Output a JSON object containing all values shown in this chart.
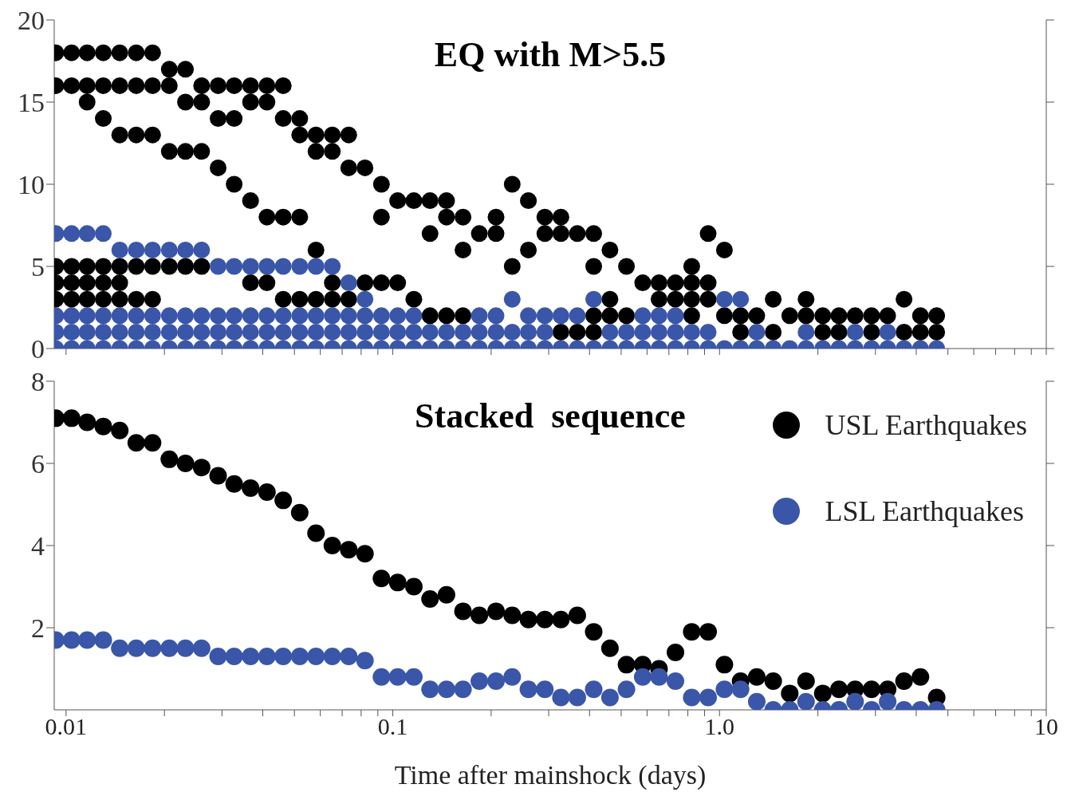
{
  "chart_data": [
    {
      "type": "scatter",
      "title": "EQ with M>5.5",
      "log": "x",
      "marker": "circle",
      "tick_labels": "y",
      "xlim": [
        0.0092,
        10
      ],
      "xticks": [
        {
          "value": 0.01,
          "label": null
        },
        {
          "value": 0.02,
          "label": null
        },
        {
          "value": 0.03,
          "label": null
        },
        {
          "value": 0.04,
          "label": null
        },
        {
          "value": 0.05,
          "label": null
        },
        {
          "value": 0.06,
          "label": null
        },
        {
          "value": 0.07,
          "label": null
        },
        {
          "value": 0.08,
          "label": null
        },
        {
          "value": 0.09,
          "label": null
        },
        {
          "value": 0.1,
          "label": null
        },
        {
          "value": 0.2,
          "label": null
        },
        {
          "value": 0.3,
          "label": null
        },
        {
          "value": 0.4,
          "label": null
        },
        {
          "value": 0.5,
          "label": null
        },
        {
          "value": 0.6,
          "label": null
        },
        {
          "value": 0.7,
          "label": null
        },
        {
          "value": 0.8,
          "label": null
        },
        {
          "value": 0.9,
          "label": null
        },
        {
          "value": 1,
          "label": null
        },
        {
          "value": 2,
          "label": null
        },
        {
          "value": 3,
          "label": null
        },
        {
          "value": 4,
          "label": null
        },
        {
          "value": 5,
          "label": null
        },
        {
          "value": 6,
          "label": null
        },
        {
          "value": 7,
          "label": null
        },
        {
          "value": 8,
          "label": null
        },
        {
          "value": 9,
          "label": null
        },
        {
          "value": 10,
          "label": null
        }
      ],
      "ylim": [
        0,
        20
      ],
      "yticks": [
        0,
        5,
        10,
        15,
        20
      ],
      "series": [
        {
          "color": "#000000",
          "x": [
            0.0093,
            0.0093,
            0.0093,
            0.0093,
            0.0093,
            0.0104,
            0.0104,
            0.0104,
            0.0104,
            0.0104,
            0.0116,
            0.0116,
            0.0116,
            0.0116,
            0.0116,
            0.0116,
            0.013,
            0.013,
            0.013,
            0.013,
            0.013,
            0.013,
            0.0146,
            0.0146,
            0.0146,
            0.0146,
            0.0146,
            0.0146,
            0.0164,
            0.0164,
            0.0164,
            0.0164,
            0.0164,
            0.0184,
            0.0184,
            0.0184,
            0.0184,
            0.0184,
            0.0207,
            0.0207,
            0.0207,
            0.0207,
            0.0232,
            0.0232,
            0.0232,
            0.0232,
            0.026,
            0.026,
            0.026,
            0.026,
            0.0292,
            0.0292,
            0.0292,
            0.0327,
            0.0327,
            0.0327,
            0.0367,
            0.0367,
            0.0367,
            0.0367,
            0.0412,
            0.0412,
            0.0412,
            0.0412,
            0.0462,
            0.0462,
            0.0462,
            0.0462,
            0.0519,
            0.0519,
            0.0519,
            0.0519,
            0.0582,
            0.0582,
            0.0582,
            0.0582,
            0.0653,
            0.0653,
            0.0653,
            0.0653,
            0.0733,
            0.0733,
            0.0733,
            0.0822,
            0.0822,
            0.0923,
            0.0923,
            0.0923,
            0.1035,
            0.1035,
            0.116,
            0.116,
            0.13,
            0.13,
            0.13,
            0.146,
            0.146,
            0.146,
            0.164,
            0.164,
            0.164,
            0.184,
            0.207,
            0.207,
            0.232,
            0.232,
            0.26,
            0.26,
            0.292,
            0.292,
            0.327,
            0.327,
            0.327,
            0.367,
            0.367,
            0.412,
            0.412,
            0.412,
            0.412,
            0.462,
            0.462,
            0.462,
            0.519,
            0.519,
            0.582,
            0.653,
            0.653,
            0.733,
            0.733,
            0.822,
            0.822,
            0.822,
            0.822,
            0.923,
            0.923,
            0.923,
            1.035,
            1.035,
            1.16,
            1.16,
            1.3,
            1.46,
            1.46,
            1.64,
            1.84,
            1.84,
            2.07,
            2.07,
            2.32,
            2.32,
            2.6,
            2.92,
            2.92,
            3.27,
            3.67,
            3.67,
            4.12,
            4.12,
            4.62,
            4.62
          ],
          "values": [
            18,
            16,
            5,
            4,
            3,
            18,
            16,
            5,
            4,
            3,
            18,
            16,
            15,
            5,
            4,
            3,
            18,
            16,
            14,
            5,
            4,
            3,
            18,
            16,
            13,
            5,
            4,
            3,
            18,
            16,
            13,
            5,
            3,
            18,
            16,
            13,
            5,
            3,
            17,
            16,
            12,
            5,
            17,
            15,
            12,
            5,
            16,
            15,
            12,
            5,
            16,
            14,
            11,
            16,
            14,
            10,
            16,
            15,
            9,
            4,
            16,
            15,
            8,
            4,
            16,
            14,
            8,
            3,
            14,
            13,
            8,
            3,
            13,
            12,
            6,
            3,
            13,
            12,
            4,
            3,
            13,
            11,
            3,
            11,
            4,
            10,
            8,
            4,
            9,
            4,
            9,
            3,
            9,
            7,
            2,
            9,
            8,
            2,
            8,
            6,
            2,
            7,
            8,
            7,
            10,
            5,
            9,
            6,
            8,
            7,
            8,
            7,
            1,
            7,
            1,
            7,
            5,
            2,
            1,
            6,
            3,
            2,
            5,
            2,
            4,
            4,
            3,
            4,
            3,
            5,
            4,
            3,
            2,
            7,
            4,
            3,
            6,
            2,
            2,
            1,
            2,
            3,
            1,
            2,
            3,
            2,
            2,
            1,
            2,
            1,
            2,
            2,
            1,
            2,
            3,
            1,
            2,
            1,
            2,
            1
          ]
        },
        {
          "color": "#3a56a8",
          "x": [
            0.0093,
            0.0093,
            0.0093,
            0.0093,
            0.0104,
            0.0104,
            0.0104,
            0.0104,
            0.0116,
            0.0116,
            0.0116,
            0.0116,
            0.013,
            0.013,
            0.013,
            0.013,
            0.0146,
            0.0146,
            0.0146,
            0.0146,
            0.0164,
            0.0164,
            0.0164,
            0.0164,
            0.0184,
            0.0184,
            0.0184,
            0.0184,
            0.0207,
            0.0207,
            0.0207,
            0.0207,
            0.0232,
            0.0232,
            0.0232,
            0.0232,
            0.026,
            0.026,
            0.026,
            0.026,
            0.0292,
            0.0292,
            0.0292,
            0.0292,
            0.0327,
            0.0327,
            0.0327,
            0.0327,
            0.0367,
            0.0367,
            0.0367,
            0.0367,
            0.0412,
            0.0412,
            0.0412,
            0.0412,
            0.0462,
            0.0462,
            0.0462,
            0.0462,
            0.0519,
            0.0519,
            0.0519,
            0.0519,
            0.0582,
            0.0582,
            0.0582,
            0.0582,
            0.0653,
            0.0653,
            0.0653,
            0.0653,
            0.0733,
            0.0733,
            0.0733,
            0.0733,
            0.0822,
            0.0822,
            0.0822,
            0.0822,
            0.0923,
            0.0923,
            0.0923,
            0.1035,
            0.1035,
            0.1035,
            0.116,
            0.116,
            0.116,
            0.13,
            0.13,
            0.146,
            0.146,
            0.164,
            0.164,
            0.184,
            0.184,
            0.184,
            0.207,
            0.207,
            0.207,
            0.232,
            0.232,
            0.232,
            0.26,
            0.26,
            0.26,
            0.292,
            0.292,
            0.292,
            0.327,
            0.327,
            0.367,
            0.367,
            0.412,
            0.412,
            0.462,
            0.462,
            0.519,
            0.519,
            0.582,
            0.582,
            0.582,
            0.653,
            0.653,
            0.653,
            0.733,
            0.733,
            0.733,
            0.822,
            0.822,
            0.923,
            0.923,
            1.035,
            1.035,
            1.16,
            1.16,
            1.3,
            1.3,
            1.46,
            1.64,
            1.84,
            1.84,
            2.07,
            2.32,
            2.6,
            2.6,
            2.92,
            3.27,
            3.27,
            3.67,
            4.12,
            4.62
          ],
          "values": [
            7,
            2,
            1,
            0,
            7,
            2,
            1,
            0,
            7,
            2,
            1,
            0,
            7,
            2,
            1,
            0,
            6,
            2,
            1,
            0,
            6,
            2,
            1,
            0,
            6,
            2,
            1,
            0,
            6,
            2,
            1,
            0,
            6,
            2,
            1,
            0,
            6,
            2,
            1,
            0,
            5,
            2,
            1,
            0,
            5,
            2,
            1,
            0,
            5,
            2,
            1,
            0,
            5,
            2,
            1,
            0,
            5,
            2,
            1,
            0,
            5,
            2,
            1,
            0,
            5,
            2,
            1,
            0,
            5,
            2,
            1,
            0,
            4,
            2,
            1,
            0,
            3,
            2,
            1,
            0,
            2,
            1,
            0,
            2,
            1,
            0,
            2,
            1,
            0,
            1,
            0,
            1,
            0,
            1,
            0,
            2,
            1,
            0,
            2,
            1,
            0,
            3,
            1,
            0,
            2,
            1,
            0,
            2,
            1,
            0,
            2,
            0,
            2,
            0,
            3,
            0,
            1,
            0,
            1,
            0,
            2,
            1,
            0,
            2,
            1,
            0,
            2,
            1,
            0,
            1,
            0,
            1,
            0,
            3,
            0,
            3,
            0,
            1,
            0,
            0,
            0,
            1,
            0,
            0,
            0,
            1,
            0,
            0,
            1,
            0,
            0,
            0,
            0
          ]
        }
      ]
    },
    {
      "type": "scatter",
      "title": "Stacked  sequence",
      "xlabel": "Time after mainshock (days)",
      "log": "x",
      "marker": "circle",
      "legend": "top right",
      "xlim": [
        0.0092,
        10
      ],
      "xticks": [
        0.01,
        {
          "value": 0.02,
          "label": null
        },
        {
          "value": 0.03,
          "label": null
        },
        {
          "value": 0.04,
          "label": null
        },
        {
          "value": 0.05,
          "label": null
        },
        {
          "value": 0.06,
          "label": null
        },
        {
          "value": 0.07,
          "label": null
        },
        {
          "value": 0.08,
          "label": null
        },
        {
          "value": 0.09,
          "label": null
        },
        0.1,
        {
          "value": 0.2,
          "label": null
        },
        {
          "value": 0.3,
          "label": null
        },
        {
          "value": 0.4,
          "label": null
        },
        {
          "value": 0.5,
          "label": null
        },
        {
          "value": 0.6,
          "label": null
        },
        {
          "value": 0.7,
          "label": null
        },
        {
          "value": 0.8,
          "label": null
        },
        {
          "value": 0.9,
          "label": null
        },
        {
          "value": 1,
          "label": "1.0"
        },
        {
          "value": 2,
          "label": null
        },
        {
          "value": 3,
          "label": null
        },
        {
          "value": 4,
          "label": null
        },
        {
          "value": 5,
          "label": null
        },
        {
          "value": 6,
          "label": null
        },
        {
          "value": 7,
          "label": null
        },
        {
          "value": 8,
          "label": null
        },
        {
          "value": 9,
          "label": null
        },
        10
      ],
      "ylim": [
        0,
        8
      ],
      "yticks": [
        2,
        4,
        6,
        8
      ],
      "x": [
        0.0093,
        0.0104,
        0.0116,
        0.013,
        0.0146,
        0.0164,
        0.0184,
        0.0207,
        0.0232,
        0.026,
        0.0292,
        0.0327,
        0.0367,
        0.0412,
        0.0462,
        0.0519,
        0.0582,
        0.0653,
        0.0733,
        0.0822,
        0.0923,
        0.1035,
        0.116,
        0.13,
        0.146,
        0.164,
        0.184,
        0.207,
        0.232,
        0.26,
        0.292,
        0.327,
        0.367,
        0.412,
        0.462,
        0.519,
        0.582,
        0.653,
        0.733,
        0.822,
        0.923,
        1.035,
        1.16,
        1.3,
        1.46,
        1.64,
        1.84,
        2.07,
        2.32,
        2.6,
        2.92,
        3.27,
        3.67,
        4.12,
        4.62
      ],
      "series": [
        {
          "name": "USL Earthquakes",
          "color": "#000000",
          "values": [
            7.1,
            7.1,
            7.0,
            6.9,
            6.8,
            6.5,
            6.5,
            6.1,
            6.0,
            5.9,
            5.7,
            5.5,
            5.4,
            5.3,
            5.1,
            4.8,
            4.3,
            4.0,
            3.9,
            3.8,
            3.2,
            3.1,
            3.0,
            2.7,
            2.8,
            2.4,
            2.3,
            2.4,
            2.3,
            2.2,
            2.2,
            2.2,
            2.3,
            1.9,
            1.5,
            1.1,
            1.1,
            1.0,
            1.4,
            1.9,
            1.9,
            1.1,
            0.7,
            0.8,
            0.7,
            0.4,
            0.7,
            0.4,
            0.5,
            0.5,
            0.5,
            0.5,
            0.7,
            0.8,
            0.3
          ]
        },
        {
          "name": "LSL Earthquakes",
          "color": "#3a56a8",
          "values": [
            1.7,
            1.7,
            1.7,
            1.7,
            1.5,
            1.5,
            1.5,
            1.5,
            1.5,
            1.5,
            1.3,
            1.3,
            1.3,
            1.3,
            1.3,
            1.3,
            1.3,
            1.3,
            1.3,
            1.2,
            0.8,
            0.8,
            0.8,
            0.5,
            0.5,
            0.5,
            0.7,
            0.7,
            0.8,
            0.5,
            0.5,
            0.3,
            0.3,
            0.5,
            0.3,
            0.5,
            0.8,
            0.8,
            0.7,
            0.3,
            0.3,
            0.5,
            0.5,
            0.2,
            0.0,
            0.0,
            0.2,
            0.0,
            0.0,
            0.2,
            0.0,
            0.2,
            0.0,
            0.0,
            0.0
          ]
        }
      ]
    }
  ]
}
